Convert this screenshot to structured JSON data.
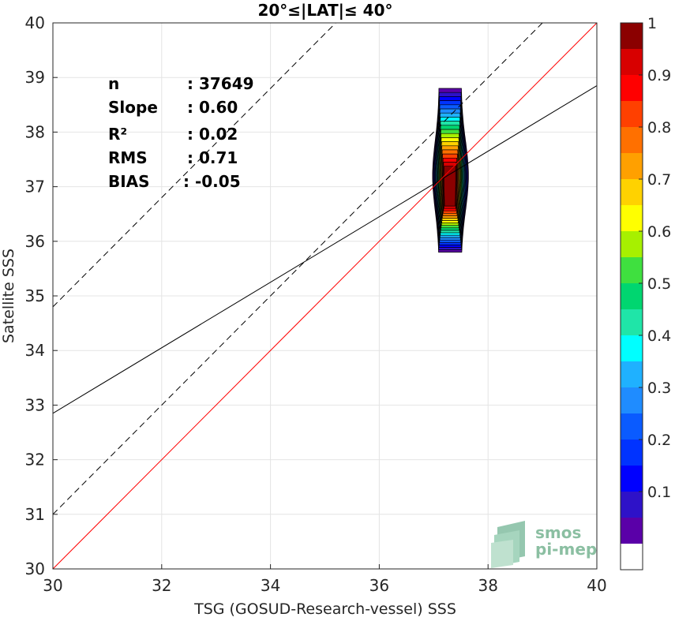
{
  "chart_data": {
    "type": "contour",
    "title": "20°≤|LAT|≤ 40°",
    "xlabel": "TSG (GOSUD-Research-vessel) SSS",
    "ylabel": "Satellite SSS",
    "xlim": [
      30,
      40
    ],
    "ylim": [
      30,
      40
    ],
    "xticks": [
      30,
      32,
      34,
      36,
      38,
      40
    ],
    "yticks": [
      30,
      31,
      32,
      33,
      34,
      35,
      36,
      37,
      38,
      39,
      40
    ],
    "grid": true,
    "stats": [
      {
        "label": "n",
        "value": ": 37649"
      },
      {
        "label": "Slope",
        "value": ": 0.60"
      },
      {
        "label": "R²",
        "value": ": 0.02"
      },
      {
        "label": "RMS",
        "value": ": 0.71"
      },
      {
        "label": "BIAS",
        "value": ": -0.05"
      }
    ],
    "lines": {
      "one_to_one": {
        "slope": 1,
        "intercept": 0,
        "color": "#ff0000"
      },
      "regression": {
        "slope": 0.6,
        "intercept": 14.85,
        "color": "#000000"
      },
      "upper_bound": {
        "slope": 1,
        "intercept": 4.8,
        "style": "dashed"
      },
      "lower_bound": {
        "slope": 1,
        "intercept": 1.0,
        "style": "dashed"
      }
    },
    "density": {
      "center": [
        37.3,
        36.8
      ],
      "sx_extent": [
        37.0,
        37.6
      ],
      "sy_extent": [
        35.8,
        38.8
      ],
      "levels": [
        0.05,
        0.1,
        0.15,
        0.2,
        0.25,
        0.3,
        0.35,
        0.4,
        0.45,
        0.5,
        0.55,
        0.6,
        0.65,
        0.7,
        0.75,
        0.8,
        0.85,
        0.9,
        0.95,
        1.0
      ]
    },
    "colorbar": {
      "ticks": [
        0.1,
        0.2,
        0.3,
        0.4,
        0.5,
        0.6,
        0.7,
        0.8,
        0.9,
        1
      ],
      "tick_labels": [
        "0.1",
        "0.2",
        "0.3",
        "0.4",
        "0.5",
        "0.6",
        "0.7",
        "0.8",
        "0.9",
        "1"
      ],
      "colors": [
        "#ffffff",
        "#5a00a8",
        "#2e12c8",
        "#0000ff",
        "#0033ff",
        "#0a5bff",
        "#1f8cff",
        "#1fb1ff",
        "#00ffff",
        "#1fe5a8",
        "#00d670",
        "#3fe03f",
        "#a7f000",
        "#ffff00",
        "#ffd200",
        "#ffa000",
        "#ff7000",
        "#ff4000",
        "#ff0000",
        "#d80000",
        "#8b0000"
      ]
    }
  },
  "watermark": {
    "line1": "smos",
    "line2": "pi-mep"
  }
}
